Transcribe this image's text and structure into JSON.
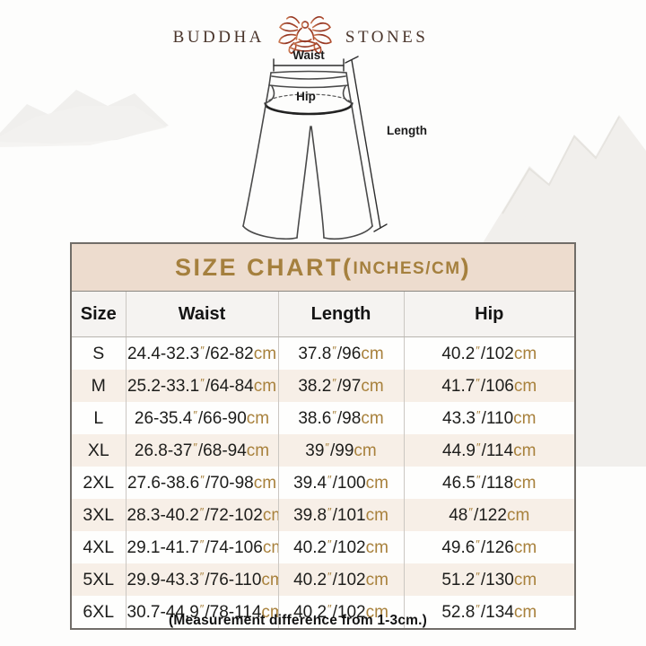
{
  "brand": {
    "word_left": "BUDDHA",
    "word_right": "STONES",
    "logo_icon": "lotus-meditation-icon"
  },
  "diagram": {
    "waist_label": "Waist",
    "hip_label": "Hip",
    "length_label": "Length"
  },
  "size_chart": {
    "title": "SIZE CHART",
    "title_paren_open": "(",
    "title_units": "INCHES/CM",
    "title_paren_close": ")",
    "columns": [
      "Size",
      "Waist",
      "Length",
      "Hip"
    ],
    "inch_mark": "″",
    "separator": "/",
    "cm_unit": "cm",
    "rows": [
      {
        "size": "S",
        "waist_in": "24.4-32.3",
        "waist_cm": "62-82",
        "length_in": "37.8",
        "length_cm": "96",
        "hip_in": "40.2",
        "hip_cm": "102"
      },
      {
        "size": "M",
        "waist_in": "25.2-33.1",
        "waist_cm": "64-84",
        "length_in": "38.2",
        "length_cm": "97",
        "hip_in": "41.7",
        "hip_cm": "106"
      },
      {
        "size": "L",
        "waist_in": "26-35.4",
        "waist_cm": "66-90",
        "length_in": "38.6",
        "length_cm": "98",
        "hip_in": "43.3",
        "hip_cm": "110"
      },
      {
        "size": "XL",
        "waist_in": "26.8-37",
        "waist_cm": "68-94",
        "length_in": "39",
        "length_cm": "99",
        "hip_in": "44.9",
        "hip_cm": "114"
      },
      {
        "size": "2XL",
        "waist_in": "27.6-38.6",
        "waist_cm": "70-98",
        "length_in": "39.4",
        "length_cm": "100",
        "hip_in": "46.5",
        "hip_cm": "118"
      },
      {
        "size": "3XL",
        "waist_in": "28.3-40.2",
        "waist_cm": "72-102",
        "length_in": "39.8",
        "length_cm": "101",
        "hip_in": "48",
        "hip_cm": "122"
      },
      {
        "size": "4XL",
        "waist_in": "29.1-41.7",
        "waist_cm": "74-106",
        "length_in": "40.2",
        "length_cm": "102",
        "hip_in": "49.6",
        "hip_cm": "126"
      },
      {
        "size": "5XL",
        "waist_in": "29.9-43.3",
        "waist_cm": "76-110",
        "length_in": "40.2",
        "length_cm": "102",
        "hip_in": "51.2",
        "hip_cm": "130"
      },
      {
        "size": "6XL",
        "waist_in": "30.7-44.9",
        "waist_cm": "78-114",
        "length_in": "40.2",
        "length_cm": "102",
        "hip_in": "52.8",
        "hip_cm": "134"
      }
    ]
  },
  "footnote": "(Measurement difference from 1-3cm.)",
  "colors": {
    "chart_header_bg": "#eddcce",
    "chart_title_text": "#a5803e",
    "unit_accent": "#a8813c",
    "body_text": "#1d1d1b",
    "brand_text": "#4a352b",
    "lotus_dark": "#8e2f1d",
    "lotus_light": "#cc7952",
    "table_border": "#716d68",
    "grid_line": "#cbc7c2",
    "row_tint": "#f7efe7"
  }
}
